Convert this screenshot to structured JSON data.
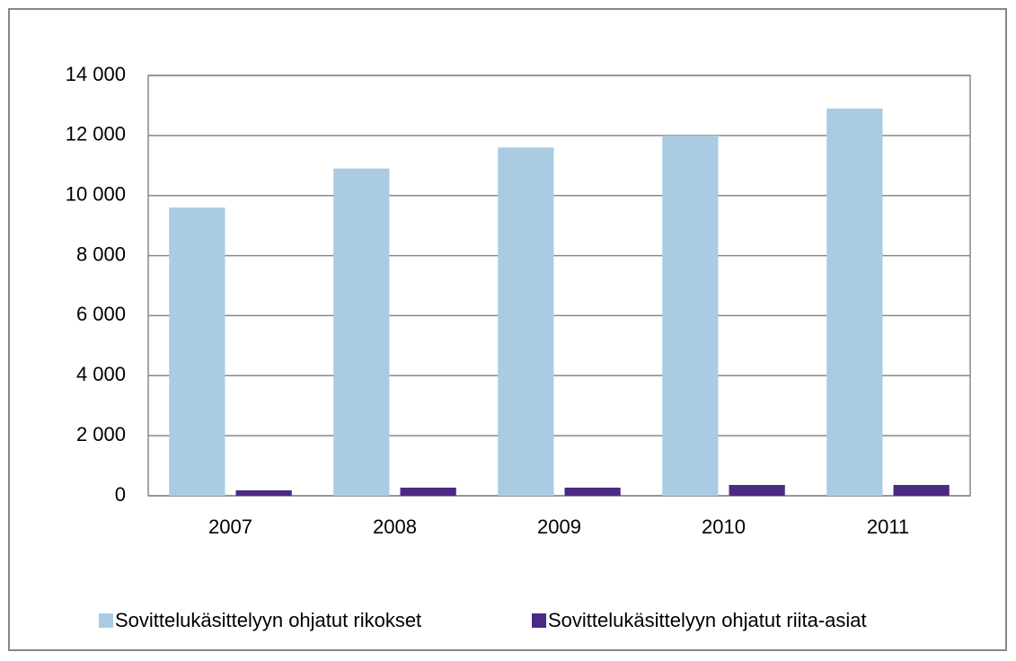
{
  "chart_data": {
    "type": "bar",
    "categories": [
      "2007",
      "2008",
      "2009",
      "2010",
      "2011"
    ],
    "series": [
      {
        "name": "Sovittelukäsittelyyn ohjatut rikokset",
        "color": "#a9cce3",
        "values": [
          9600,
          10900,
          11600,
          12000,
          12900
        ]
      },
      {
        "name": "Sovittelukäsittelyyn ohjatut riita-asiat",
        "color": "#4b2a84",
        "values": [
          180,
          270,
          270,
          360,
          360
        ]
      }
    ],
    "ylim": [
      0,
      14000
    ],
    "yticks": [
      0,
      {
        "value": 2000,
        "label": "2 000"
      },
      {
        "value": 4000,
        "label": "4 000"
      },
      {
        "value": 6000,
        "label": "6 000"
      },
      {
        "value": 8000,
        "label": "8 000"
      },
      {
        "value": 10000,
        "label": "10 000"
      },
      {
        "value": 12000,
        "label": "12 000"
      },
      {
        "value": 14000,
        "label": "14 000"
      }
    ],
    "grid": true,
    "legend": "bottom"
  }
}
